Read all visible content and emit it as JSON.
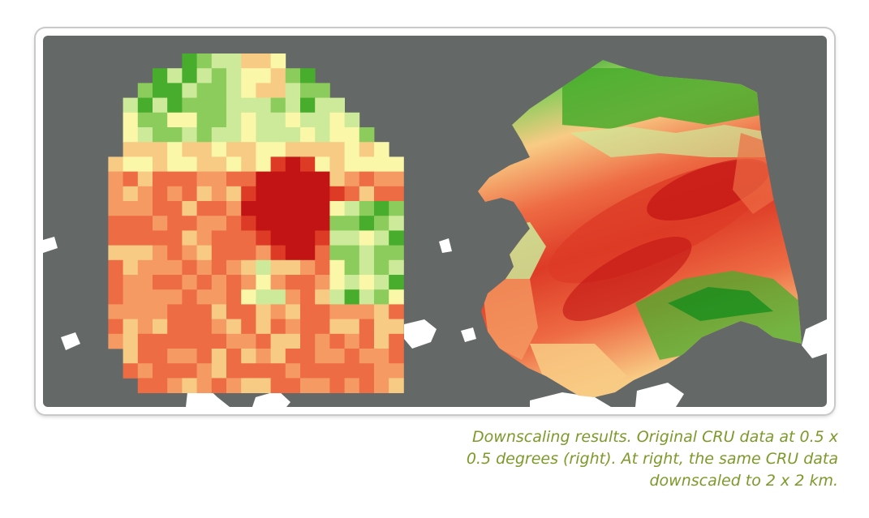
{
  "caption": {
    "lines": [
      "Downscaling results. Original CRU data at 0.5 x",
      "0.5 degrees (right). At right, the same CRU data",
      "downscaled to 2 x 2 km."
    ]
  },
  "colors": {
    "background_ocean": "#646967",
    "land_outside": "#ffffff",
    "caption_text": "#7c9a2a",
    "palette": [
      "#0a8a18",
      "#48ac2c",
      "#8ccc5c",
      "#cdea9a",
      "#fbf7a8",
      "#f8cb84",
      "#f49a62",
      "#ee6c44",
      "#dd3b26",
      "#c21414"
    ]
  }
}
